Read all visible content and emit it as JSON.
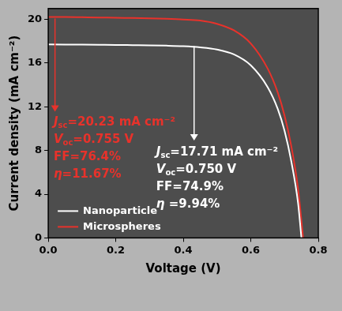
{
  "chart_data": {
    "type": "line",
    "x_label": "Voltage (V)",
    "y_label": "Current density (mA cm⁻²)",
    "xlim": [
      0,
      0.8
    ],
    "xticks": [
      {
        "value": 0,
        "label": "0.0"
      },
      0.2,
      0.4,
      0.6,
      0.8
    ],
    "ylim": [
      0,
      21
    ],
    "yticks": [
      0,
      4,
      8,
      12,
      16,
      20
    ],
    "grid": false,
    "legend": "lower left",
    "series": [
      {
        "name": "Nanoparticle",
        "color": "#ffffff",
        "x": [
          0,
          0.05,
          0.1,
          0.15,
          0.2,
          0.25,
          0.3,
          0.35,
          0.4,
          0.45,
          0.5,
          0.55,
          0.6,
          0.65,
          0.68,
          0.7,
          0.72,
          0.74,
          0.75
        ],
        "values": [
          17.71,
          17.7,
          17.69,
          17.68,
          17.67,
          17.65,
          17.63,
          17.6,
          17.55,
          17.45,
          17.25,
          16.8,
          15.8,
          13.8,
          11.8,
          9.8,
          7.0,
          3.2,
          0
        ]
      },
      {
        "name": "Microspheres",
        "color": "#e8322b",
        "x": [
          0,
          0.05,
          0.1,
          0.15,
          0.2,
          0.25,
          0.3,
          0.35,
          0.4,
          0.45,
          0.5,
          0.55,
          0.6,
          0.65,
          0.68,
          0.7,
          0.72,
          0.74,
          0.755
        ],
        "values": [
          20.23,
          20.22,
          20.2,
          20.18,
          20.15,
          20.13,
          20.1,
          20.06,
          20.0,
          19.9,
          19.6,
          19.0,
          17.8,
          15.5,
          13.3,
          11.2,
          8.4,
          4.5,
          0
        ]
      }
    ],
    "annotations": [
      {
        "color": "#e8322b",
        "lines": [
          {
            "main": "J",
            "sub": "sc",
            "rest": "=20.23 mA cm⁻²"
          },
          {
            "main": "V",
            "sub": "oc",
            "rest": "=0.755 V"
          },
          {
            "main": "",
            "sub": "",
            "rest": "FF=76.4%"
          },
          {
            "main": "η",
            "sub": "",
            "rest": "=11.67%"
          }
        ]
      },
      {
        "color": "#ffffff",
        "lines": [
          {
            "main": "J",
            "sub": "sc",
            "rest": "=17.71 mA cm⁻²"
          },
          {
            "main": "V",
            "sub": "oc",
            "rest": "=0.750 V"
          },
          {
            "main": "",
            "sub": "",
            "rest": "FF=74.9%"
          },
          {
            "main": "η",
            "sub": "",
            "rest": " =9.94%"
          }
        ]
      }
    ]
  }
}
